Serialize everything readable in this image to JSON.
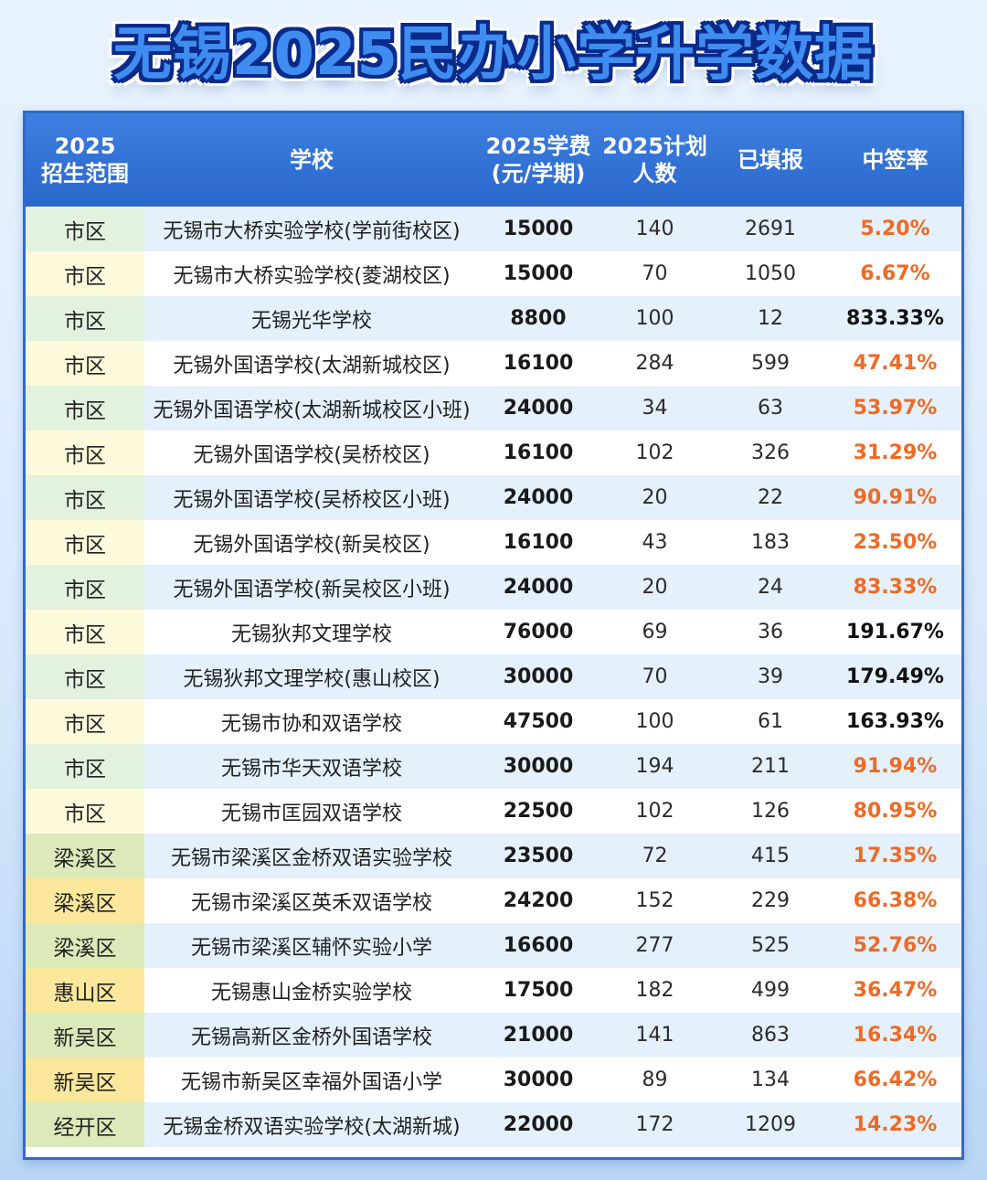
{
  "title": "无锡2025民办小学升学数据",
  "table": {
    "headers": [
      "2025\n招生范围",
      "学校",
      "2025学费\n(元/学期)",
      "2025计划\n人数",
      "已填报",
      "中签率"
    ],
    "rows": [
      {
        "region": "市区",
        "school": "无锡市大桥实验学校(学前街校区)",
        "fee": "15000",
        "plan": "140",
        "applied": "2691",
        "rate": "5.20%",
        "rate_color": "orange"
      },
      {
        "region": "市区",
        "school": "无锡市大桥实验学校(菱湖校区)",
        "fee": "15000",
        "plan": "70",
        "applied": "1050",
        "rate": "6.67%",
        "rate_color": "orange"
      },
      {
        "region": "市区",
        "school": "无锡光华学校",
        "fee": "8800",
        "plan": "100",
        "applied": "12",
        "rate": "833.33%",
        "rate_color": "dark"
      },
      {
        "region": "市区",
        "school": "无锡外国语学校(太湖新城校区)",
        "fee": "16100",
        "plan": "284",
        "applied": "599",
        "rate": "47.41%",
        "rate_color": "orange"
      },
      {
        "region": "市区",
        "school": "无锡外国语学校(太湖新城校区小班)",
        "fee": "24000",
        "plan": "34",
        "applied": "63",
        "rate": "53.97%",
        "rate_color": "orange"
      },
      {
        "region": "市区",
        "school": "无锡外国语学校(吴桥校区)",
        "fee": "16100",
        "plan": "102",
        "applied": "326",
        "rate": "31.29%",
        "rate_color": "orange"
      },
      {
        "region": "市区",
        "school": "无锡外国语学校(吴桥校区小班)",
        "fee": "24000",
        "plan": "20",
        "applied": "22",
        "rate": "90.91%",
        "rate_color": "orange"
      },
      {
        "region": "市区",
        "school": "无锡外国语学校(新吴校区)",
        "fee": "16100",
        "plan": "43",
        "applied": "183",
        "rate": "23.50%",
        "rate_color": "orange"
      },
      {
        "region": "市区",
        "school": "无锡外国语学校(新吴校区小班)",
        "fee": "24000",
        "plan": "20",
        "applied": "24",
        "rate": "83.33%",
        "rate_color": "orange"
      },
      {
        "region": "市区",
        "school": "无锡狄邦文理学校",
        "fee": "76000",
        "plan": "69",
        "applied": "36",
        "rate": "191.67%",
        "rate_color": "dark"
      },
      {
        "region": "市区",
        "school": "无锡狄邦文理学校(惠山校区)",
        "fee": "30000",
        "plan": "70",
        "applied": "39",
        "rate": "179.49%",
        "rate_color": "dark"
      },
      {
        "region": "市区",
        "school": "无锡市协和双语学校",
        "fee": "47500",
        "plan": "100",
        "applied": "61",
        "rate": "163.93%",
        "rate_color": "dark"
      },
      {
        "region": "市区",
        "school": "无锡市华天双语学校",
        "fee": "30000",
        "plan": "194",
        "applied": "211",
        "rate": "91.94%",
        "rate_color": "orange"
      },
      {
        "region": "市区",
        "school": "无锡市匡园双语学校",
        "fee": "22500",
        "plan": "102",
        "applied": "126",
        "rate": "80.95%",
        "rate_color": "orange"
      },
      {
        "region": "梁溪区",
        "school": "无锡市梁溪区金桥双语实验学校",
        "fee": "23500",
        "plan": "72",
        "applied": "415",
        "rate": "17.35%",
        "rate_color": "orange"
      },
      {
        "region": "梁溪区",
        "school": "无锡市梁溪区英禾双语学校",
        "fee": "24200",
        "plan": "152",
        "applied": "229",
        "rate": "66.38%",
        "rate_color": "orange"
      },
      {
        "region": "梁溪区",
        "school": "无锡市梁溪区辅怀实验小学",
        "fee": "16600",
        "plan": "277",
        "applied": "525",
        "rate": "52.76%",
        "rate_color": "orange"
      },
      {
        "region": "惠山区",
        "school": "无锡惠山金桥实验学校",
        "fee": "17500",
        "plan": "182",
        "applied": "499",
        "rate": "36.47%",
        "rate_color": "orange"
      },
      {
        "region": "新吴区",
        "school": "无锡高新区金桥外国语学校",
        "fee": "21000",
        "plan": "141",
        "applied": "863",
        "rate": "16.34%",
        "rate_color": "orange"
      },
      {
        "region": "新吴区",
        "school": "无锡市新吴区幸福外国语小学",
        "fee": "30000",
        "plan": "89",
        "applied": "134",
        "rate": "66.42%",
        "rate_color": "orange"
      },
      {
        "region": "经开区",
        "school": "无锡金桥双语实验学校(太湖新城)",
        "fee": "22000",
        "plan": "172",
        "applied": "1209",
        "rate": "14.23%",
        "rate_color": "orange"
      }
    ]
  },
  "colors": {
    "header_bg": "#2e6bc9",
    "rate_orange": "#ef6a25",
    "rate_dark": "#111111",
    "stripe_blue": "#e4f1fd"
  }
}
